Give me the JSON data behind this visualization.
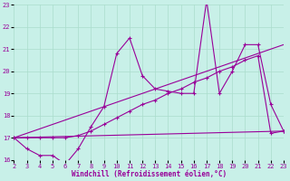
{
  "title": "Windchill (Refroidissement éolien,°C)",
  "bg_color": "#c8f0e8",
  "line_color": "#990099",
  "grid_color": "#aaddcc",
  "xlim": [
    2,
    23
  ],
  "ylim": [
    16,
    23
  ],
  "xticks": [
    2,
    3,
    4,
    5,
    6,
    7,
    8,
    9,
    10,
    11,
    12,
    13,
    14,
    15,
    16,
    17,
    18,
    19,
    20,
    21,
    22,
    23
  ],
  "yticks": [
    16,
    17,
    18,
    19,
    20,
    21,
    22,
    23
  ],
  "series": [
    {
      "x": [
        2,
        3,
        4,
        5,
        6,
        7,
        8,
        9,
        10,
        11,
        12,
        13,
        14,
        15,
        16,
        17,
        18,
        19,
        20,
        21,
        22,
        23
      ],
      "y": [
        17.0,
        16.5,
        16.2,
        16.2,
        15.8,
        16.5,
        17.5,
        18.4,
        20.8,
        21.5,
        19.8,
        19.2,
        19.1,
        19.0,
        19.0,
        23.2,
        19.0,
        20.0,
        21.2,
        21.2,
        18.5,
        17.3
      ],
      "marker": true
    },
    {
      "x": [
        2,
        23
      ],
      "y": [
        17.0,
        21.2
      ],
      "marker": false
    },
    {
      "x": [
        2,
        23
      ],
      "y": [
        17.0,
        17.3
      ],
      "marker": false
    },
    {
      "x": [
        2,
        3,
        4,
        5,
        6,
        7,
        8,
        9,
        10,
        11,
        12,
        13,
        14,
        15,
        16,
        17,
        18,
        19,
        20,
        21,
        22,
        23
      ],
      "y": [
        17.0,
        17.0,
        17.0,
        17.0,
        17.0,
        17.1,
        17.3,
        17.6,
        17.9,
        18.2,
        18.5,
        18.7,
        19.0,
        19.2,
        19.5,
        19.7,
        20.0,
        20.2,
        20.5,
        20.7,
        17.2,
        17.3
      ],
      "marker": true
    }
  ]
}
